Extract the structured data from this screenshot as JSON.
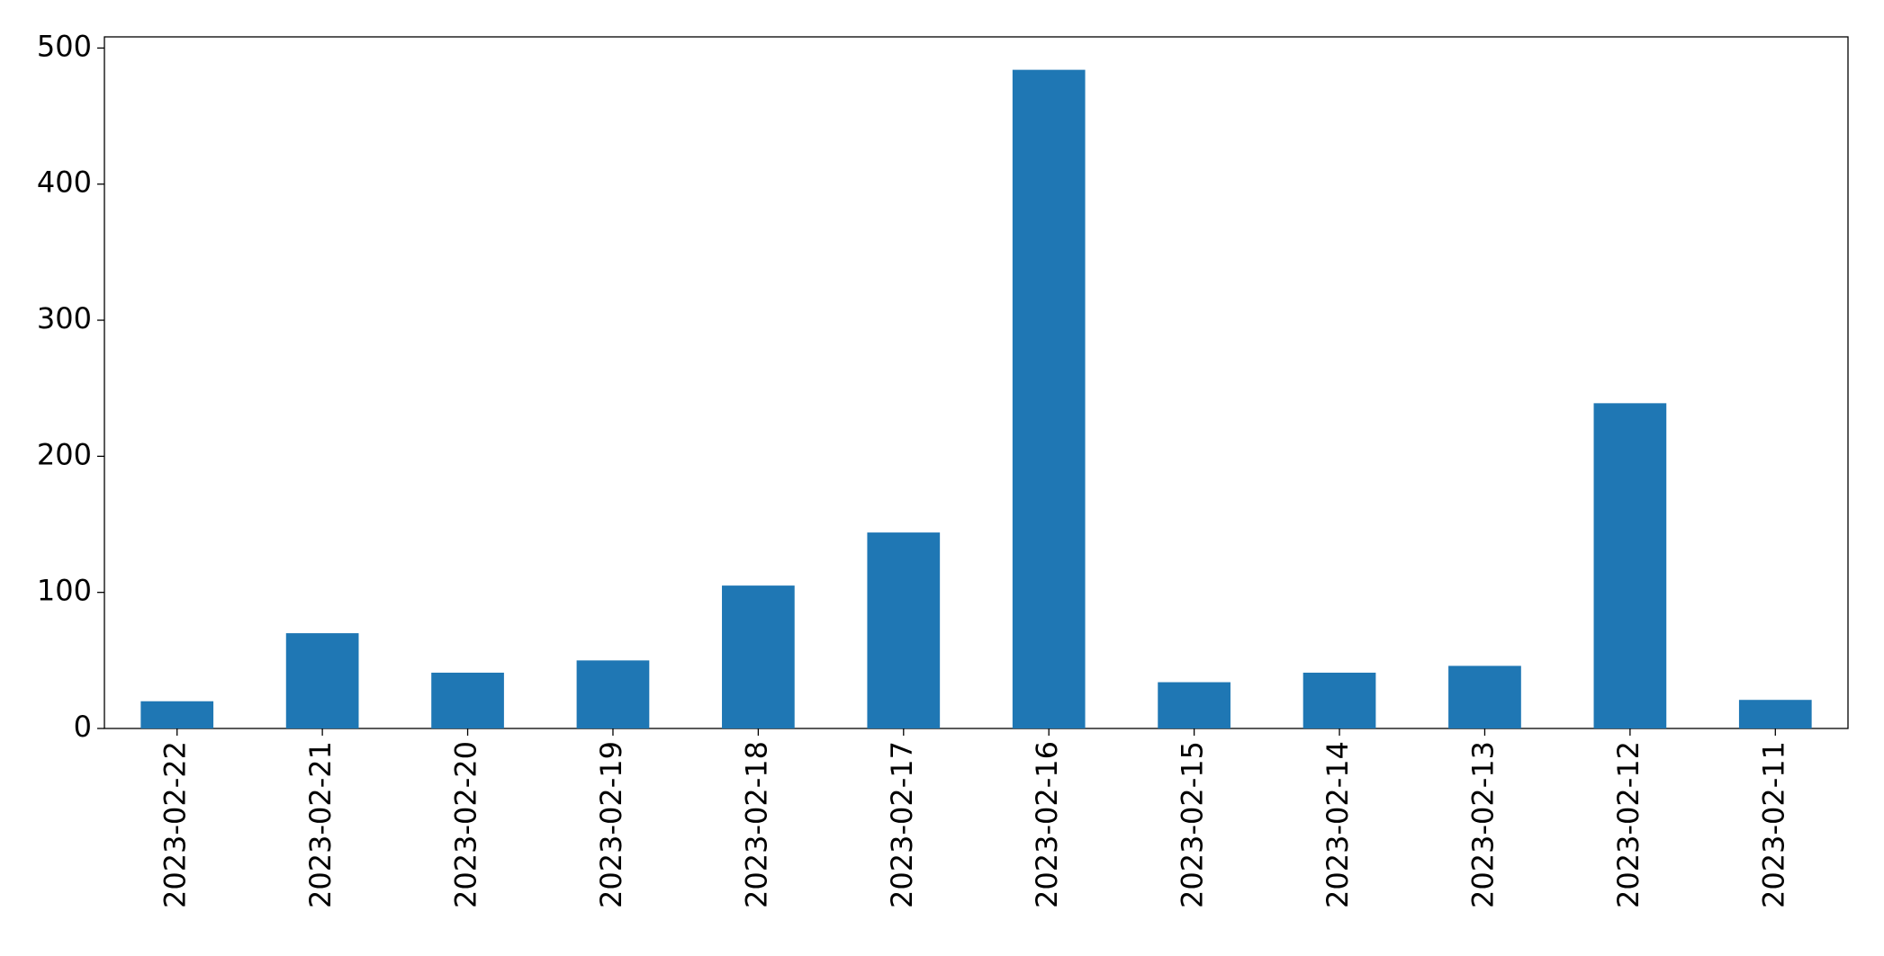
{
  "chart_data": {
    "type": "bar",
    "categories": [
      "2023-02-22",
      "2023-02-21",
      "2023-02-20",
      "2023-02-19",
      "2023-02-18",
      "2023-02-17",
      "2023-02-16",
      "2023-02-15",
      "2023-02-14",
      "2023-02-13",
      "2023-02-12",
      "2023-02-11"
    ],
    "values": [
      20,
      70,
      41,
      50,
      105,
      144,
      484,
      34,
      41,
      46,
      239,
      21
    ],
    "color": "#1f77b4",
    "ylim": [
      0,
      508.2
    ],
    "yticks": [
      0,
      100,
      200,
      300,
      400,
      500
    ],
    "grid": false
  }
}
